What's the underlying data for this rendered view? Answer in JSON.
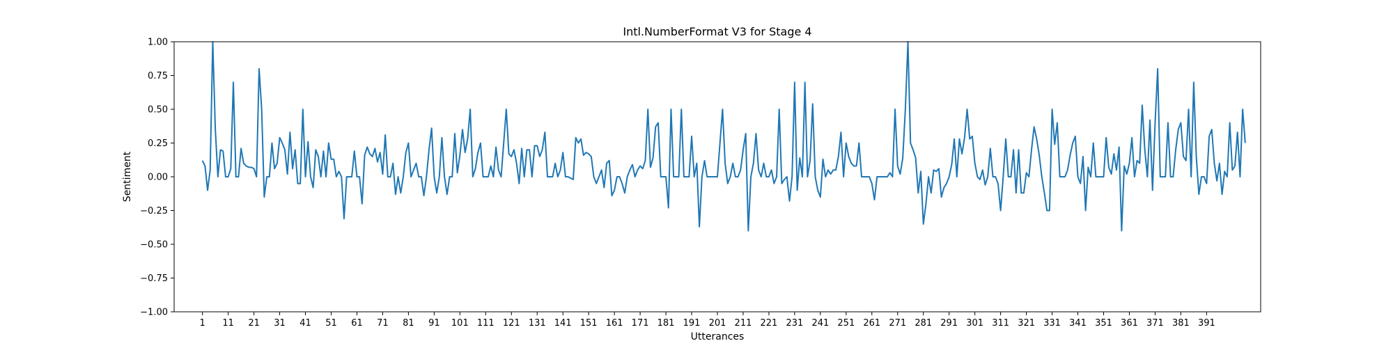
{
  "chart_data": {
    "type": "line",
    "title": "Intl.NumberFormat V3 for Stage 4",
    "xlabel": "Utterances",
    "ylabel": "Sentiment",
    "ylim": [
      -1.0,
      1.0
    ],
    "xlim": [
      -10,
      412
    ],
    "yticks": [
      -1.0,
      -0.75,
      -0.5,
      -0.25,
      0.0,
      0.25,
      0.5,
      0.75,
      1.0
    ],
    "ytick_labels": [
      "−1.00",
      "−0.75",
      "−0.50",
      "−0.25",
      "0.00",
      "0.25",
      "0.50",
      "0.75",
      "1.00"
    ],
    "xticks": [
      1,
      11,
      21,
      31,
      41,
      51,
      61,
      71,
      81,
      91,
      101,
      111,
      121,
      131,
      141,
      151,
      161,
      171,
      181,
      191,
      201,
      211,
      221,
      231,
      241,
      251,
      261,
      271,
      281,
      291,
      301,
      311,
      321,
      331,
      341,
      351,
      361,
      371,
      381,
      391
    ],
    "xtick_labels": [
      "1",
      "11",
      "21",
      "31",
      "41",
      "51",
      "61",
      "71",
      "81",
      "91",
      "101",
      "111",
      "121",
      "131",
      "141",
      "151",
      "161",
      "171",
      "181",
      "191",
      "201",
      "211",
      "221",
      "231",
      "241",
      "251",
      "261",
      "271",
      "281",
      "291",
      "301",
      "311",
      "321",
      "331",
      "341",
      "351",
      "361",
      "371",
      "381",
      "391"
    ],
    "grid": false,
    "line_color": "#1f77b4",
    "series": [
      {
        "x_start": 1,
        "values": [
          0.12,
          0.08,
          -0.1,
          0.05,
          1.0,
          0.35,
          0.0,
          0.2,
          0.19,
          0.0,
          0.0,
          0.06,
          0.7,
          0.0,
          0.0,
          0.21,
          0.1,
          0.08,
          0.07,
          0.07,
          0.06,
          0.0,
          0.8,
          0.5,
          -0.15,
          0.0,
          0.0,
          0.25,
          0.06,
          0.1,
          0.29,
          0.25,
          0.2,
          0.02,
          0.33,
          0.06,
          0.2,
          -0.05,
          -0.05,
          0.5,
          0.0,
          0.26,
          0.0,
          -0.08,
          0.2,
          0.15,
          0.0,
          0.19,
          0.0,
          0.25,
          0.13,
          0.13,
          0.0,
          0.04,
          0.0,
          -0.31,
          0.0,
          0.0,
          0.0,
          0.19,
          0.0,
          0.0,
          -0.2,
          0.16,
          0.22,
          0.17,
          0.15,
          0.21,
          0.11,
          0.18,
          0.02,
          0.31,
          0.0,
          0.0,
          0.1,
          -0.13,
          0.0,
          -0.12,
          0.0,
          0.18,
          0.25,
          0.0,
          0.05,
          0.1,
          0.0,
          0.0,
          -0.14,
          0.0,
          0.2,
          0.36,
          0.0,
          -0.12,
          0.0,
          0.29,
          0.0,
          -0.13,
          0.0,
          0.0,
          0.32,
          0.03,
          0.16,
          0.35,
          0.18,
          0.28,
          0.5,
          0.0,
          0.06,
          0.18,
          0.25,
          0.0,
          0.0,
          0.0,
          0.08,
          0.0,
          0.22,
          0.05,
          0.0,
          0.25,
          0.5,
          0.17,
          0.15,
          0.2,
          0.1,
          -0.05,
          0.21,
          0.0,
          0.2,
          0.2,
          0.0,
          0.23,
          0.23,
          0.15,
          0.2,
          0.33,
          0.0,
          0.0,
          0.0,
          0.1,
          0.0,
          0.05,
          0.18,
          0.0,
          0.0,
          -0.01,
          -0.02,
          0.29,
          0.25,
          0.28,
          0.16,
          0.18,
          0.17,
          0.15,
          0.0,
          -0.05,
          0.0,
          0.05,
          -0.08,
          0.1,
          0.12,
          -0.14,
          -0.1,
          0.0,
          0.0,
          -0.05,
          -0.12,
          0.0,
          0.05,
          0.09,
          0.0,
          0.05,
          0.08,
          0.06,
          0.12,
          0.5,
          0.07,
          0.14,
          0.37,
          0.4,
          0.0,
          0.0,
          0.0,
          -0.23,
          0.5,
          0.0,
          0.0,
          0.0,
          0.5,
          0.0,
          0.0,
          0.0,
          0.3,
          0.0,
          0.1,
          -0.37,
          0.0,
          0.12,
          0.0,
          0.0,
          0.0,
          0.0,
          0.0,
          0.25,
          0.5,
          0.1,
          -0.05,
          0.0,
          0.1,
          0.0,
          0.0,
          0.05,
          0.2,
          0.32,
          -0.4,
          0.0,
          0.1,
          0.32,
          0.05,
          0.0,
          0.1,
          0.0,
          0.0,
          0.05,
          -0.05,
          0.0,
          0.5,
          -0.05,
          -0.02,
          0.0,
          -0.18,
          0.0,
          0.7,
          -0.1,
          0.14,
          0.0,
          0.7,
          0.0,
          0.12,
          0.54,
          0.0,
          -0.1,
          -0.15,
          0.13,
          0.0,
          0.05,
          0.02,
          0.05,
          0.05,
          0.15,
          0.33,
          0.0,
          0.25,
          0.15,
          0.1,
          0.08,
          0.08,
          0.25,
          0.0,
          0.0,
          0.0,
          0.0,
          -0.05,
          -0.17,
          0.0,
          0.0,
          0.0,
          0.0,
          0.0,
          0.03,
          0.0,
          0.5,
          0.08,
          0.02,
          0.14,
          0.5,
          1.0,
          0.25,
          0.2,
          0.14,
          -0.12,
          0.04,
          -0.35,
          -0.2,
          0.0,
          -0.12,
          0.05,
          0.04,
          0.06,
          -0.15,
          -0.08,
          -0.05,
          0.0,
          0.09,
          0.28,
          0.0,
          0.28,
          0.17,
          0.29,
          0.5,
          0.28,
          0.3,
          0.1,
          0.0,
          -0.02,
          0.05,
          -0.06,
          0.0,
          0.21,
          0.0,
          0.0,
          -0.05,
          -0.25,
          0.0,
          0.28,
          0.0,
          0.0,
          0.2,
          -0.12,
          0.2,
          -0.12,
          -0.12,
          0.03,
          0.0,
          0.2,
          0.37,
          0.28,
          0.16,
          0.0,
          -0.12,
          -0.25,
          -0.25,
          0.5,
          0.24,
          0.4,
          0.0,
          0.0,
          0.0,
          0.05,
          0.16,
          0.25,
          0.3,
          0.0,
          -0.05,
          0.15,
          -0.25,
          0.07,
          0.0,
          0.25,
          0.0,
          0.0,
          0.0,
          0.0,
          0.29,
          0.07,
          0.02,
          0.17,
          0.05,
          0.22,
          -0.4,
          0.08,
          0.02,
          0.1,
          0.29,
          0.0,
          0.12,
          0.1,
          0.53,
          0.2,
          0.0,
          0.42,
          -0.1,
          0.4,
          0.8,
          0.0,
          0.0,
          0.0,
          0.4,
          0.0,
          0.0,
          0.2,
          0.35,
          0.4,
          0.15,
          0.12,
          0.5,
          0.0,
          0.7,
          0.15,
          -0.13,
          0.0,
          0.0,
          -0.05,
          0.3,
          0.35,
          0.1,
          -0.03,
          0.1,
          -0.13,
          0.04,
          0.0,
          0.4,
          0.05,
          0.08,
          0.33,
          0.0,
          0.5,
          0.25
        ]
      }
    ]
  }
}
